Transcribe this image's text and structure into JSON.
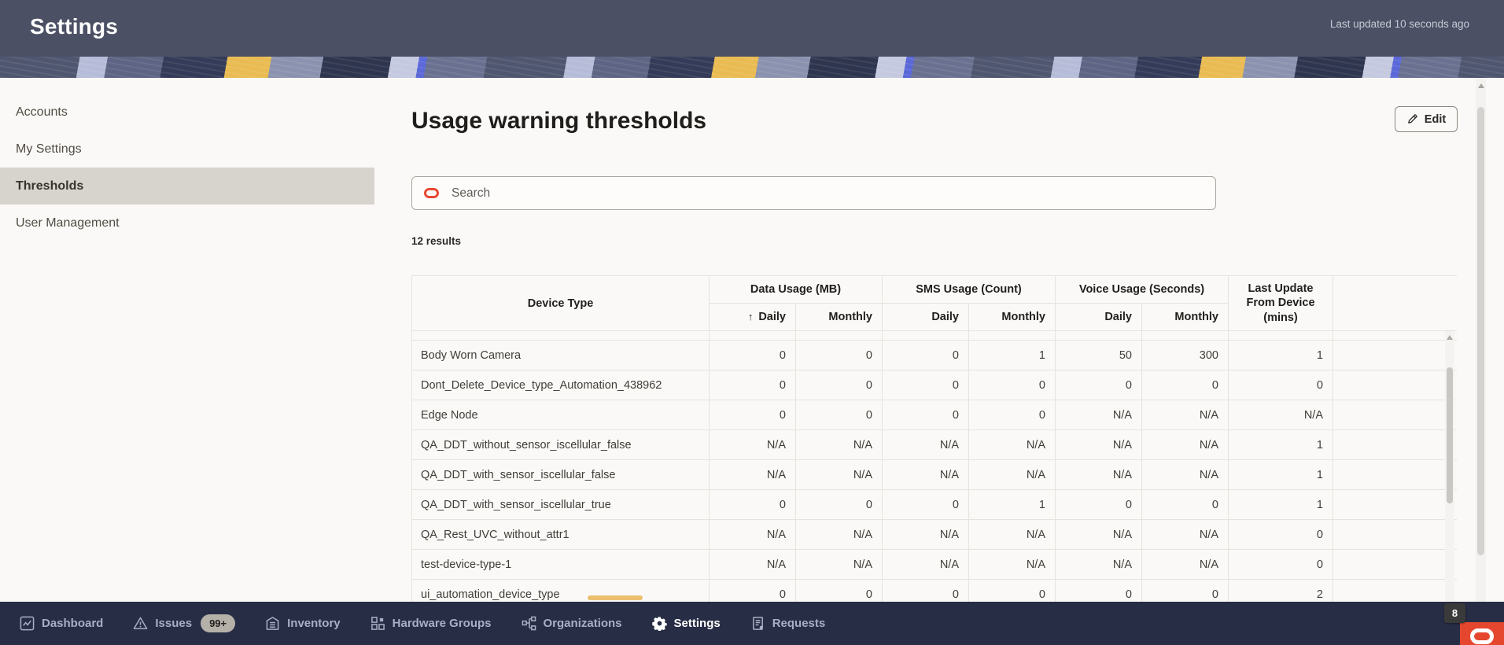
{
  "header": {
    "title": "Settings",
    "last_updated": "Last updated 10 seconds ago"
  },
  "sidebar": {
    "items": [
      {
        "label": "Accounts",
        "selected": false
      },
      {
        "label": "My Settings",
        "selected": false
      },
      {
        "label": "Thresholds",
        "selected": true
      },
      {
        "label": "User Management",
        "selected": false
      }
    ]
  },
  "main": {
    "title": "Usage warning thresholds",
    "edit_button": "Edit",
    "search_placeholder": "Search",
    "results_count": "12 results"
  },
  "table": {
    "device_type_header": "Device Type",
    "group_headers": [
      "Data Usage (MB)",
      "SMS Usage (Count)",
      "Voice Usage (Seconds)"
    ],
    "sub_headers": [
      "Daily",
      "Monthly",
      "Daily",
      "Monthly",
      "Daily",
      "Monthly"
    ],
    "last_update_header": "Last Update From Device (mins)",
    "sort_indicator": "↑",
    "rows": [
      {
        "name": "Body Worn Camera",
        "values": [
          "0",
          "0",
          "0",
          "1",
          "50",
          "300",
          "1"
        ]
      },
      {
        "name": "Dont_Delete_Device_type_Automation_438962",
        "values": [
          "0",
          "0",
          "0",
          "0",
          "0",
          "0",
          "0"
        ]
      },
      {
        "name": "Edge Node",
        "values": [
          "0",
          "0",
          "0",
          "0",
          "N/A",
          "N/A",
          "N/A"
        ]
      },
      {
        "name": "QA_DDT_without_sensor_iscellular_false",
        "values": [
          "N/A",
          "N/A",
          "N/A",
          "N/A",
          "N/A",
          "N/A",
          "1"
        ]
      },
      {
        "name": "QA_DDT_with_sensor_iscellular_false",
        "values": [
          "N/A",
          "N/A",
          "N/A",
          "N/A",
          "N/A",
          "N/A",
          "1"
        ]
      },
      {
        "name": "QA_DDT_with_sensor_iscellular_true",
        "values": [
          "0",
          "0",
          "0",
          "1",
          "0",
          "0",
          "1"
        ]
      },
      {
        "name": "QA_Rest_UVC_without_attr1",
        "values": [
          "N/A",
          "N/A",
          "N/A",
          "N/A",
          "N/A",
          "N/A",
          "0"
        ]
      },
      {
        "name": "test-device-type-1",
        "values": [
          "N/A",
          "N/A",
          "N/A",
          "N/A",
          "N/A",
          "N/A",
          "0"
        ]
      },
      {
        "name": "ui_automation_device_type",
        "values": [
          "0",
          "0",
          "0",
          "0",
          "0",
          "0",
          "2"
        ]
      }
    ]
  },
  "bottom_nav": {
    "items": [
      {
        "label": "Dashboard",
        "icon": "dashboard-icon",
        "badge": null,
        "active": false
      },
      {
        "label": "Issues",
        "icon": "issues-icon",
        "badge": "99+",
        "active": false
      },
      {
        "label": "Inventory",
        "icon": "inventory-icon",
        "badge": null,
        "active": false
      },
      {
        "label": "Hardware Groups",
        "icon": "hardware-groups-icon",
        "badge": null,
        "active": false
      },
      {
        "label": "Organizations",
        "icon": "organizations-icon",
        "badge": null,
        "active": false
      },
      {
        "label": "Settings",
        "icon": "settings-icon",
        "badge": null,
        "active": true
      },
      {
        "label": "Requests",
        "icon": "requests-icon",
        "badge": null,
        "active": false
      }
    ],
    "chat_badge": "8"
  },
  "icons": {
    "search": "oracle-ring-icon",
    "edit": "pencil-icon",
    "sort": "arrow-up-icon",
    "chat": "oracle-chat-icon"
  },
  "colors": {
    "header_bg": "#4c5065",
    "nav_bg": "#272d45",
    "accent_red": "#e8492f",
    "selected_item_bg": "#d7d3cd",
    "banner_yellow": "#e9bb52",
    "page_bg": "#faf9f7"
  }
}
